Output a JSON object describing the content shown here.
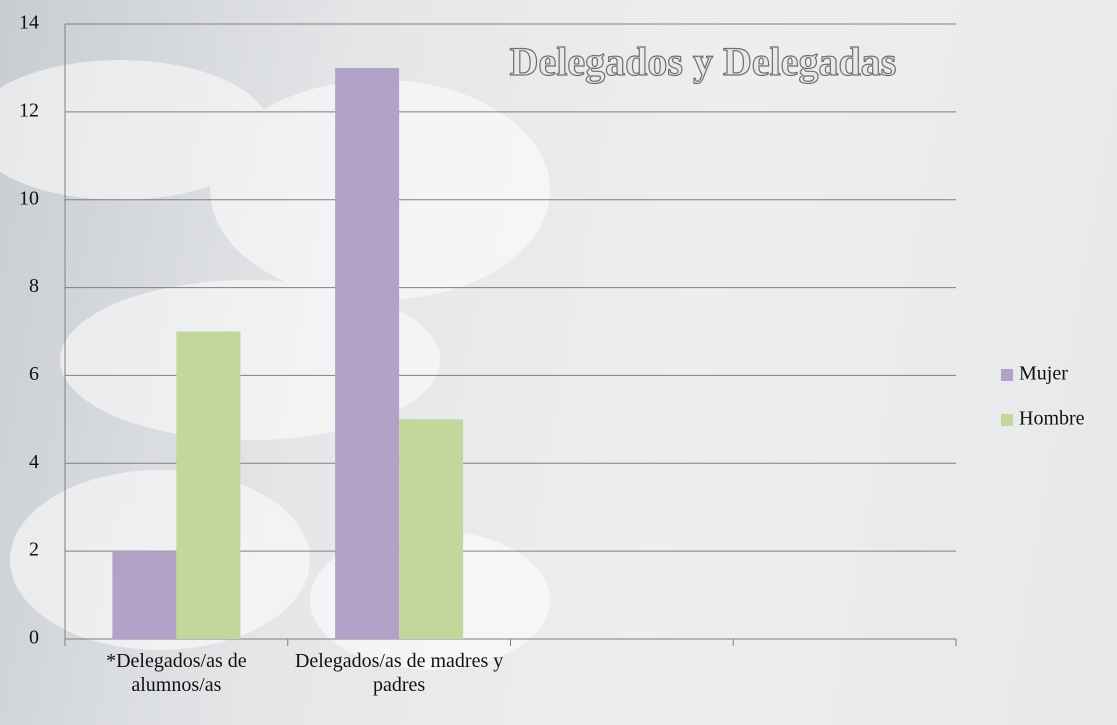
{
  "chart_data": {
    "type": "bar",
    "title": "Delegados y Delegadas",
    "categories": [
      "*Delegados/as de alumnos/as",
      "Delegados/as de madres y padres",
      null,
      null
    ],
    "series": [
      {
        "name": "Mujer",
        "color": "#b3a2c7",
        "values": [
          2,
          13,
          null,
          null
        ]
      },
      {
        "name": "Hombre",
        "color": "#c3d69b",
        "values": [
          7,
          5,
          null,
          null
        ]
      }
    ],
    "ylim": [
      0,
      14
    ],
    "yticks": [
      0,
      2,
      4,
      6,
      8,
      10,
      12,
      14
    ],
    "grid": true,
    "legend": "right"
  }
}
